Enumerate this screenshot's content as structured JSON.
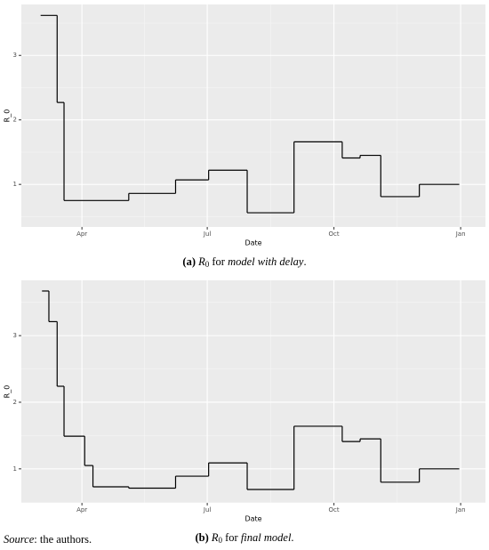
{
  "chart_data": [
    {
      "type": "line",
      "step": true,
      "grid": true,
      "background": "#ebebeb",
      "color": "#000000",
      "x_label": "Date",
      "y_label": "R_0",
      "x": [
        -30,
        -18,
        -13,
        34,
        68,
        92,
        120,
        154,
        189,
        202,
        217,
        245,
        274
      ],
      "values": [
        3.62,
        2.27,
        0.75,
        0.86,
        1.07,
        1.22,
        0.56,
        1.66,
        1.41,
        1.45,
        0.81,
        1.0,
        1.0
      ],
      "xlim": [
        -44,
        293
      ],
      "ylim": [
        0.34,
        3.79
      ],
      "xticks": [
        {
          "value": 0,
          "label": "Apr"
        },
        {
          "value": 91,
          "label": "Jul"
        },
        {
          "value": 183,
          "label": "Oct"
        },
        {
          "value": 275,
          "label": "Jan"
        }
      ],
      "yticks": [
        1,
        2,
        3
      ],
      "caption": {
        "label": "a",
        "symbol": "R",
        "subscript": "0",
        "text": " for ",
        "emphasis": "model with delay",
        "end": "."
      }
    },
    {
      "type": "line",
      "step": true,
      "grid": true,
      "background": "#ebebeb",
      "color": "#000000",
      "x_label": "Date",
      "y_label": "R_0",
      "x": [
        -29,
        -24,
        -18,
        -13,
        2,
        8,
        34,
        68,
        92,
        120,
        154,
        189,
        202,
        217,
        245,
        274
      ],
      "values": [
        3.67,
        3.21,
        2.24,
        1.49,
        1.05,
        0.73,
        0.71,
        0.89,
        1.09,
        0.69,
        1.64,
        1.41,
        1.45,
        0.8,
        1.0,
        1.0
      ],
      "xlim": [
        -44,
        293
      ],
      "ylim": [
        0.49,
        3.83
      ],
      "xticks": [
        {
          "value": 0,
          "label": "Apr"
        },
        {
          "value": 91,
          "label": "Jul"
        },
        {
          "value": 183,
          "label": "Oct"
        },
        {
          "value": 275,
          "label": "Jan"
        }
      ],
      "yticks": [
        1,
        2,
        3
      ],
      "caption": {
        "label": "b",
        "symbol": "R",
        "subscript": "0",
        "text": " for ",
        "emphasis": "final model",
        "end": "."
      }
    }
  ],
  "source": {
    "label": "Source",
    "text": ": the authors."
  }
}
